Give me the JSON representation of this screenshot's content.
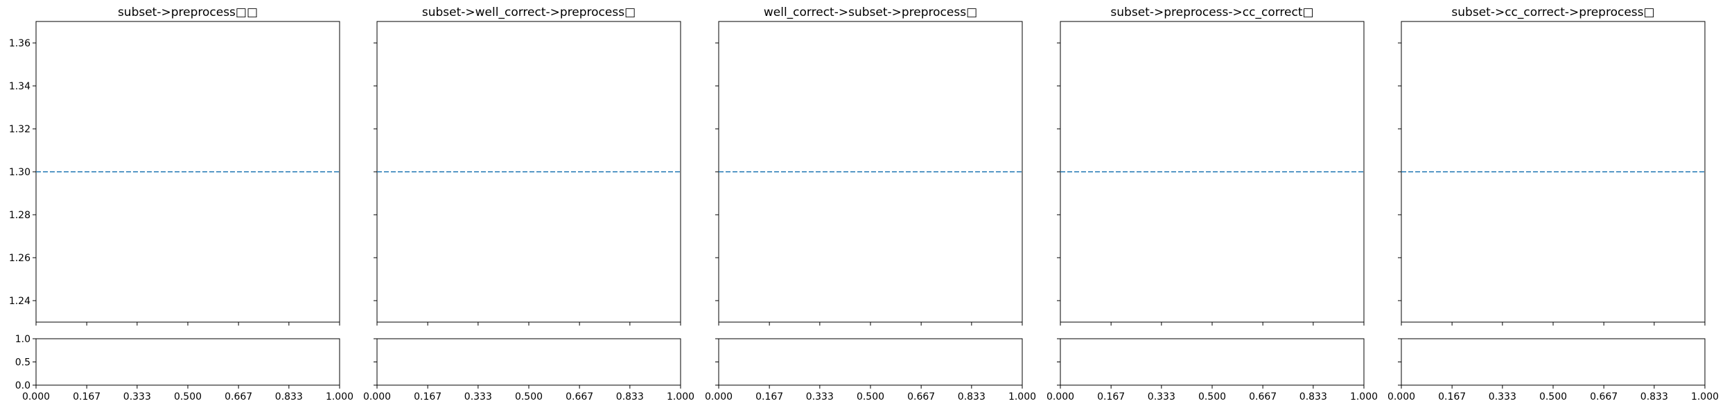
{
  "chart_data": [
    {
      "type": "line",
      "title": "subset->preprocess□□",
      "xlabel": "",
      "ylabel": "",
      "xlim": [
        0.0,
        1.0
      ],
      "ylim": [
        1.23,
        1.37
      ],
      "y_ticks": [
        "1.24",
        "1.26",
        "1.28",
        "1.30",
        "1.32",
        "1.34",
        "1.36"
      ],
      "hlines": [
        {
          "y": 1.3,
          "style": "dashed",
          "color": "#1f77b4"
        }
      ],
      "sub_ylim": [
        0.0,
        1.0
      ],
      "sub_y_ticks": [
        "0.0",
        "0.5",
        "1.0"
      ],
      "x_ticks": [
        "0.000",
        "0.167",
        "0.333",
        "0.500",
        "0.667",
        "0.833",
        "1.000"
      ],
      "grid": false
    },
    {
      "type": "line",
      "title": "subset->well_correct->preprocess□",
      "xlabel": "",
      "ylabel": "",
      "xlim": [
        0.0,
        1.0
      ],
      "ylim": [
        1.23,
        1.37
      ],
      "hlines": [
        {
          "y": 1.3,
          "style": "dashed",
          "color": "#1f77b4"
        }
      ],
      "sub_ylim": [
        0.0,
        1.0
      ],
      "x_ticks": [
        "0.000",
        "0.167",
        "0.333",
        "0.500",
        "0.667",
        "0.833",
        "1.000"
      ],
      "grid": false
    },
    {
      "type": "line",
      "title": "well_correct->subset->preprocess□",
      "xlabel": "",
      "ylabel": "",
      "xlim": [
        0.0,
        1.0
      ],
      "ylim": [
        1.23,
        1.37
      ],
      "hlines": [
        {
          "y": 1.3,
          "style": "dashed",
          "color": "#1f77b4"
        }
      ],
      "sub_ylim": [
        0.0,
        1.0
      ],
      "x_ticks": [
        "0.000",
        "0.167",
        "0.333",
        "0.500",
        "0.667",
        "0.833",
        "1.000"
      ],
      "grid": false
    },
    {
      "type": "line",
      "title": "subset->preprocess->cc_correct□",
      "xlabel": "",
      "ylabel": "",
      "xlim": [
        0.0,
        1.0
      ],
      "ylim": [
        1.23,
        1.37
      ],
      "hlines": [
        {
          "y": 1.3,
          "style": "dashed",
          "color": "#1f77b4"
        }
      ],
      "sub_ylim": [
        0.0,
        1.0
      ],
      "x_ticks": [
        "0.000",
        "0.167",
        "0.333",
        "0.500",
        "0.667",
        "0.833",
        "1.000"
      ],
      "grid": false
    },
    {
      "type": "line",
      "title": "subset->cc_correct->preprocess□",
      "xlabel": "",
      "ylabel": "",
      "xlim": [
        0.0,
        1.0
      ],
      "ylim": [
        1.23,
        1.37
      ],
      "hlines": [
        {
          "y": 1.3,
          "style": "dashed",
          "color": "#1f77b4"
        }
      ],
      "sub_ylim": [
        0.0,
        1.0
      ],
      "x_ticks": [
        "0.000",
        "0.167",
        "0.333",
        "0.500",
        "0.667",
        "0.833",
        "1.000"
      ],
      "grid": false
    }
  ]
}
